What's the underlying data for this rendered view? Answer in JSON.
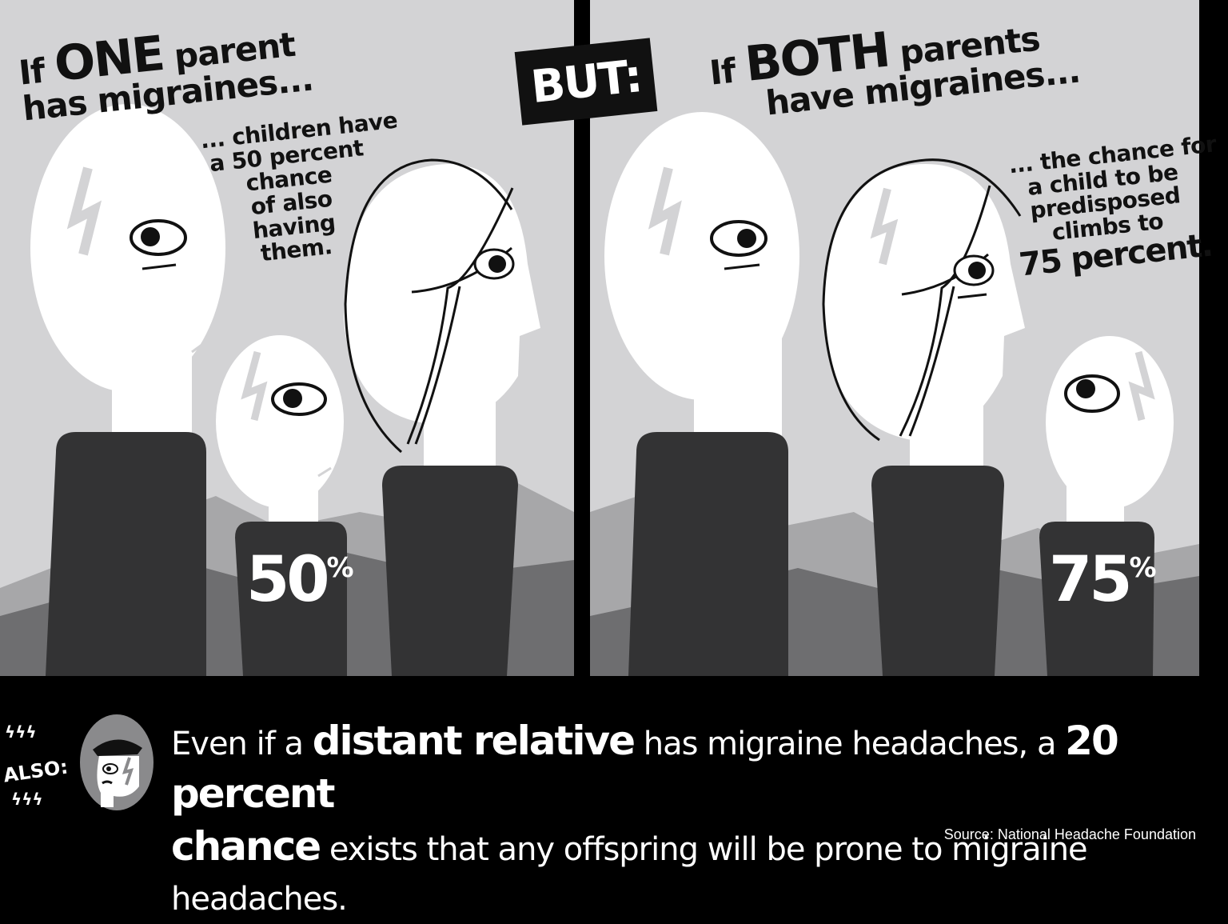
{
  "left_panel": {
    "headline_prefix": "If ",
    "headline_emph": "ONE",
    "headline_rest": " parent",
    "headline_line2": "has migraines...",
    "callout_lines": [
      "... children have",
      "a 50 percent",
      "chance",
      "of also",
      "having",
      "them."
    ],
    "child_percent": "50",
    "percent_symbol": "%"
  },
  "center": {
    "badge": "BUT:"
  },
  "right_panel": {
    "headline_prefix": "If ",
    "headline_emph": "BOTH",
    "headline_rest": " parents",
    "headline_line2": "have migraines...",
    "callout_lines": [
      "... the chance for",
      "a child to be",
      "predisposed",
      "climbs to"
    ],
    "callout_emph": "75 percent.",
    "child_percent": "75",
    "percent_symbol": "%"
  },
  "footer": {
    "also_label": "ALSO:",
    "text_1": "Even if a ",
    "bold_1": "distant relative",
    "text_2": " has migraine headaches, a ",
    "bold_2": "20 percent",
    "bold_3": "chance",
    "text_3": " exists that any offspring will be prone to migraine headaches.",
    "source": "Source: National Headache Foundation"
  },
  "colors": {
    "background": "#d3d3d5",
    "mountain_light": "#a7a7a9",
    "mountain_dark": "#6e6e70",
    "body": "#333334",
    "face": "#ffffff",
    "ink": "#111111"
  },
  "icons": [
    "lightning-bolt-icon",
    "eye-icon",
    "avatar-icon"
  ]
}
